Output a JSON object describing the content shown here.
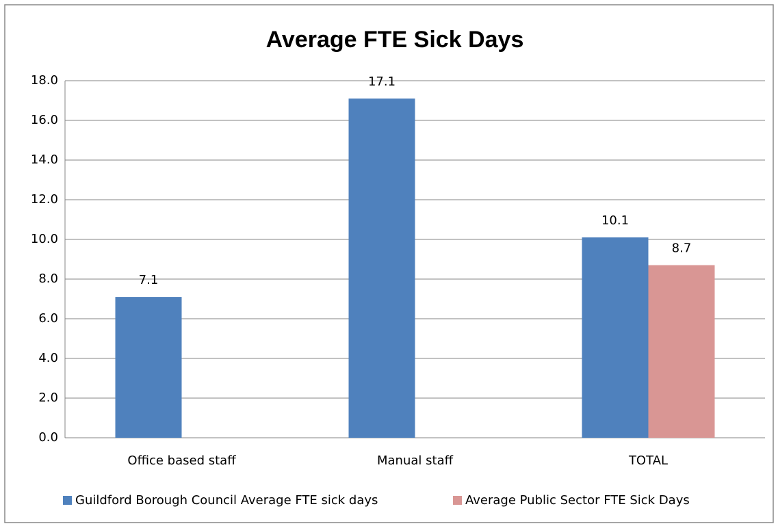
{
  "chart_data": {
    "type": "bar",
    "title": "Average FTE Sick Days",
    "categories": [
      "Office based staff",
      "Manual staff",
      "TOTAL"
    ],
    "series": [
      {
        "name": "Guildford Borough Council Average FTE sick days",
        "color": "#4f81bd",
        "values": [
          7.1,
          17.1,
          10.1
        ]
      },
      {
        "name": "Average Public Sector FTE Sick Days",
        "color": "#d99694",
        "values": [
          null,
          null,
          8.7
        ]
      }
    ],
    "ylim": [
      0,
      18
    ],
    "yticks": [
      {
        "value": 0,
        "label": "0.0"
      },
      {
        "value": 2,
        "label": "2.0"
      },
      {
        "value": 4,
        "label": "4.0"
      },
      {
        "value": 6,
        "label": "6.0"
      },
      {
        "value": 8,
        "label": "8.0"
      },
      {
        "value": 10,
        "label": "10.0"
      },
      {
        "value": 12,
        "label": "12.0"
      },
      {
        "value": 14,
        "label": "14.0"
      },
      {
        "value": 16,
        "label": "16.0"
      },
      {
        "value": 18,
        "label": "18.0"
      }
    ],
    "grid": true,
    "legend": "bottom"
  }
}
